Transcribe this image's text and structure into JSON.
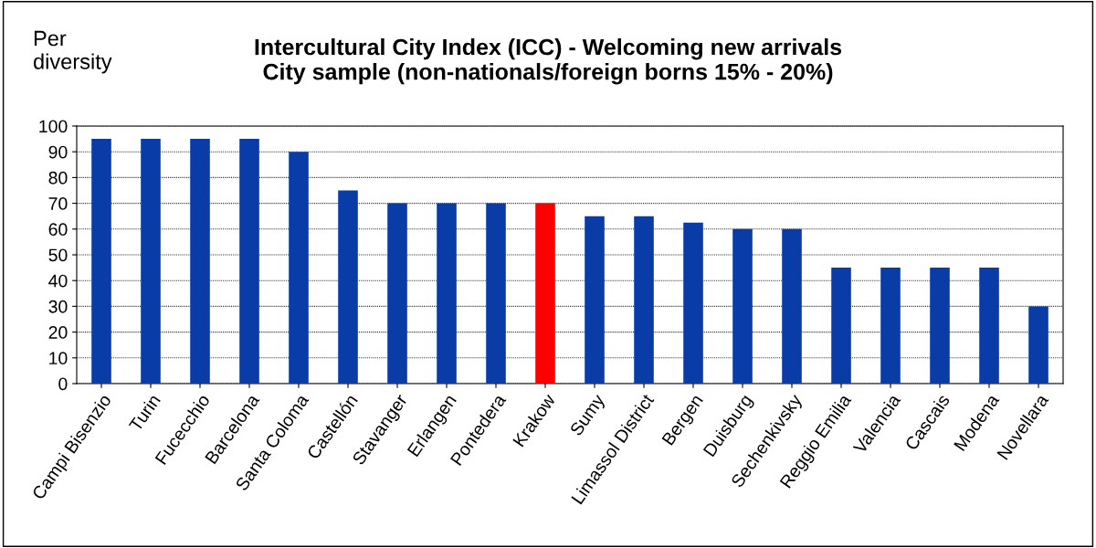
{
  "chart_data": {
    "type": "bar",
    "title": "Intercultural City Index (ICC) - Welcoming new arrivals\nCity sample (non-nationals/foreign borns 15% - 20%)",
    "ylabel": "Per\ndiversity",
    "categories": [
      "Campi Bisenzio",
      "Turin",
      "Fucecchio",
      "Barcelona",
      "Santa Coloma",
      "Castellón",
      "Stavanger",
      "Erlangen",
      "Pontedera",
      "Krakow",
      "Sumy",
      "Limassol District",
      "Bergen",
      "Duisburg",
      "Sechenkivsky",
      "Reggio Emilia",
      "Valencia",
      "Cascais",
      "Modena",
      "Novellara"
    ],
    "values": [
      95,
      95,
      95,
      95,
      90,
      75,
      70,
      70,
      70,
      70,
      65,
      65,
      62.5,
      60,
      60,
      45,
      45,
      45,
      45,
      30
    ],
    "colors": [
      "#0a3ca8",
      "#0a3ca8",
      "#0a3ca8",
      "#0a3ca8",
      "#0a3ca8",
      "#0a3ca8",
      "#0a3ca8",
      "#0a3ca8",
      "#0a3ca8",
      "#ff0000",
      "#0a3ca8",
      "#0a3ca8",
      "#0a3ca8",
      "#0a3ca8",
      "#0a3ca8",
      "#0a3ca8",
      "#0a3ca8",
      "#0a3ca8",
      "#0a3ca8",
      "#0a3ca8"
    ],
    "ylim": [
      0,
      100
    ],
    "yticks": [
      0,
      10,
      20,
      30,
      40,
      50,
      60,
      70,
      80,
      90,
      100
    ],
    "grid": "y",
    "legend": false
  }
}
